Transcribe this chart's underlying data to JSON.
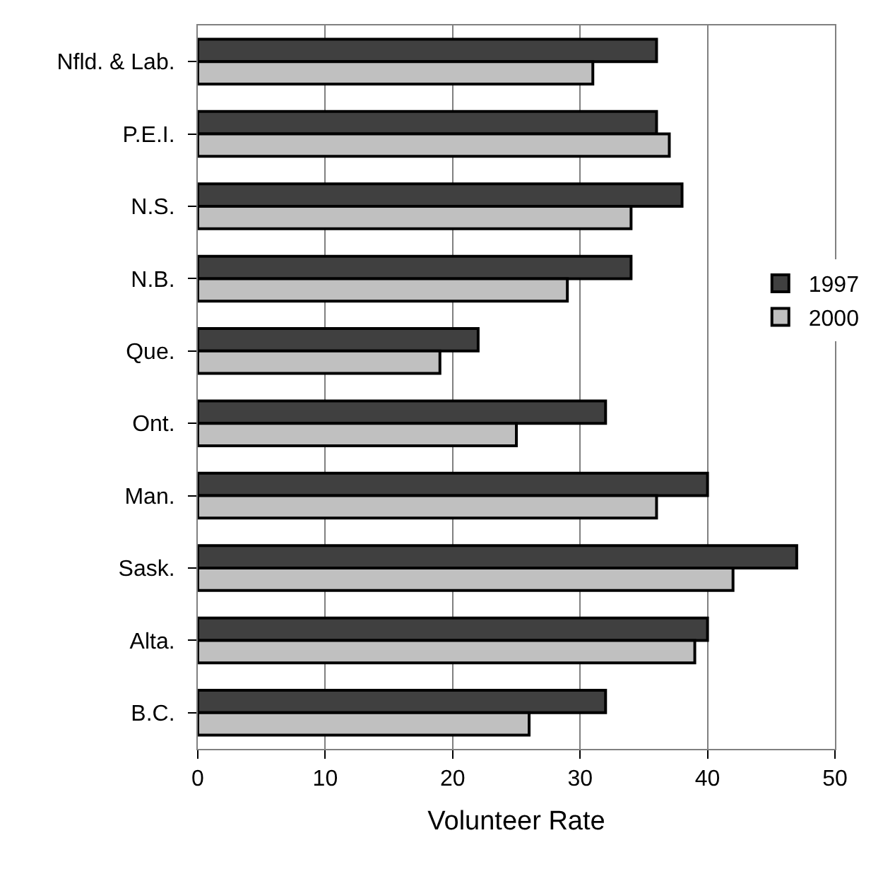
{
  "chart_data": {
    "type": "bar",
    "orientation": "horizontal",
    "xlabel": "Volunteer Rate",
    "categories": [
      "Nfld. & Lab.",
      "P.E.I.",
      "N.S.",
      "N.B.",
      "Que.",
      "Ont.",
      "Man.",
      "Sask.",
      "Alta.",
      "B.C."
    ],
    "series": [
      {
        "name": "1997",
        "color": "#404040",
        "values": [
          36,
          36,
          38,
          34,
          22,
          32,
          40,
          47,
          40,
          32
        ]
      },
      {
        "name": "2000",
        "color": "#c0c0c0",
        "values": [
          31,
          37,
          34,
          29,
          19,
          25,
          36,
          42,
          39,
          26
        ]
      }
    ],
    "xlim": [
      0,
      50
    ],
    "xticks": [
      0,
      10,
      20,
      30,
      40,
      50
    ],
    "grid": "x",
    "legend": "right"
  }
}
